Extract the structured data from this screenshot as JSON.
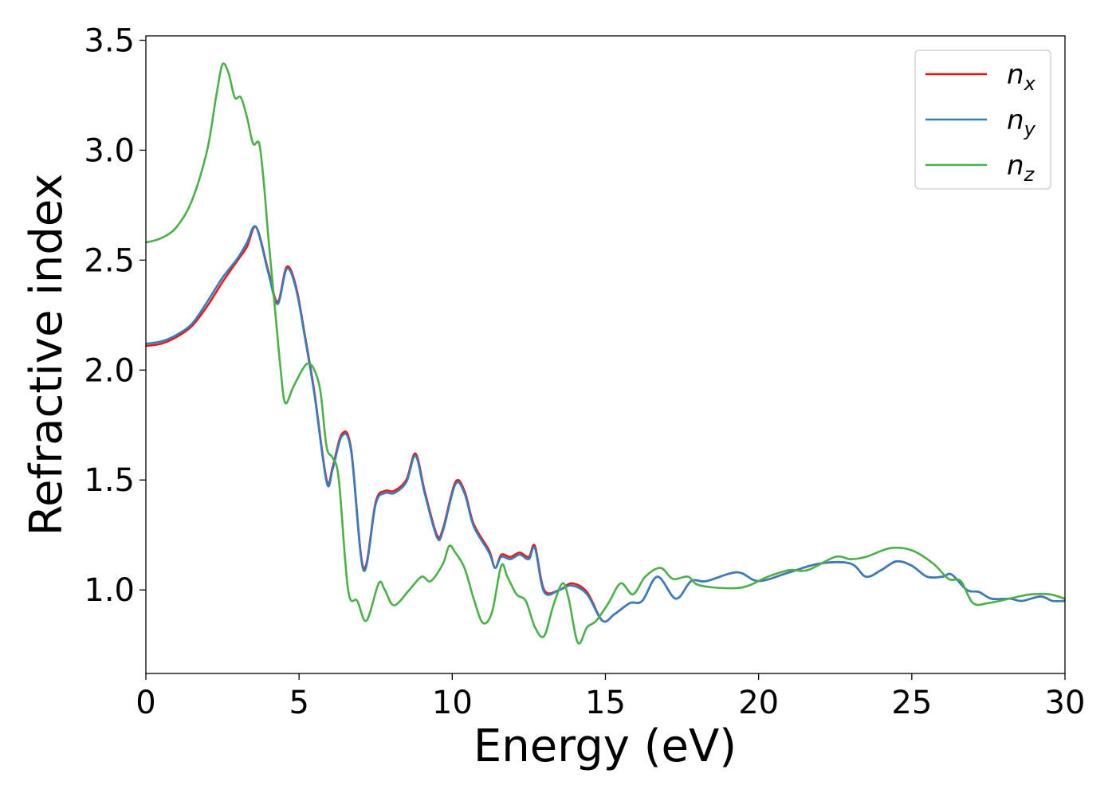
{
  "chart_data": {
    "type": "line",
    "xlabel": "Energy (eV)",
    "ylabel": "Refractive index",
    "xlim": [
      0,
      30
    ],
    "ylim": [
      0.62,
      3.52
    ],
    "x_ticks": [
      "0",
      "5",
      "10",
      "15",
      "20",
      "25",
      "30"
    ],
    "y_ticks": [
      "1.0",
      "1.5",
      "2.0",
      "2.5",
      "3.0",
      "3.5"
    ],
    "legend_position": "top-right",
    "grid": false,
    "series": [
      {
        "name": "n",
        "subscript": "x",
        "color": "#e41a1c",
        "points": [
          [
            0,
            2.11
          ],
          [
            0.5,
            2.12
          ],
          [
            1,
            2.15
          ],
          [
            1.5,
            2.2
          ],
          [
            2,
            2.29
          ],
          [
            2.5,
            2.4
          ],
          [
            3,
            2.5
          ],
          [
            3.3,
            2.56
          ],
          [
            3.6,
            2.65
          ],
          [
            4,
            2.45
          ],
          [
            4.3,
            2.31
          ],
          [
            4.6,
            2.47
          ],
          [
            4.9,
            2.38
          ],
          [
            5.2,
            2.15
          ],
          [
            5.5,
            1.9
          ],
          [
            5.9,
            1.5
          ],
          [
            6.1,
            1.56
          ],
          [
            6.4,
            1.71
          ],
          [
            6.7,
            1.64
          ],
          [
            7.1,
            1.1
          ],
          [
            7.5,
            1.4
          ],
          [
            7.8,
            1.45
          ],
          [
            8.1,
            1.45
          ],
          [
            8.5,
            1.5
          ],
          [
            8.8,
            1.62
          ],
          [
            9.1,
            1.45
          ],
          [
            9.5,
            1.25
          ],
          [
            9.7,
            1.28
          ],
          [
            10.1,
            1.49
          ],
          [
            10.4,
            1.45
          ],
          [
            10.7,
            1.3
          ],
          [
            11.2,
            1.18
          ],
          [
            11.4,
            1.1
          ],
          [
            11.6,
            1.16
          ],
          [
            11.9,
            1.15
          ],
          [
            12.2,
            1.17
          ],
          [
            12.5,
            1.15
          ],
          [
            12.7,
            1.2
          ],
          [
            13,
            1.0
          ],
          [
            13.5,
            1.0
          ],
          [
            13.9,
            1.03
          ],
          [
            14.4,
            0.99
          ],
          [
            14.9,
            0.86
          ],
          [
            15.3,
            0.89
          ],
          [
            15.8,
            0.94
          ],
          [
            16.2,
            0.95
          ],
          [
            16.7,
            1.06
          ],
          [
            17.3,
            0.96
          ],
          [
            17.8,
            1.04
          ],
          [
            18.3,
            1.04
          ],
          [
            19.3,
            1.08
          ],
          [
            20,
            1.04
          ],
          [
            21,
            1.08
          ],
          [
            22,
            1.12
          ],
          [
            23,
            1.12
          ],
          [
            23.5,
            1.06
          ],
          [
            24,
            1.09
          ],
          [
            24.5,
            1.13
          ],
          [
            25,
            1.11
          ],
          [
            25.5,
            1.06
          ],
          [
            26,
            1.06
          ],
          [
            26.3,
            1.07
          ],
          [
            26.8,
            1.0
          ],
          [
            27.2,
            0.99
          ],
          [
            27.6,
            0.96
          ],
          [
            28.2,
            0.96
          ],
          [
            28.6,
            0.95
          ],
          [
            29.2,
            0.97
          ],
          [
            29.6,
            0.95
          ],
          [
            30,
            0.95
          ]
        ]
      },
      {
        "name": "n",
        "subscript": "y",
        "color": "#377eb8",
        "points": [
          [
            0,
            2.12
          ],
          [
            0.5,
            2.13
          ],
          [
            1,
            2.16
          ],
          [
            1.5,
            2.21
          ],
          [
            2,
            2.31
          ],
          [
            2.5,
            2.42
          ],
          [
            3,
            2.51
          ],
          [
            3.3,
            2.58
          ],
          [
            3.6,
            2.65
          ],
          [
            4,
            2.44
          ],
          [
            4.3,
            2.3
          ],
          [
            4.6,
            2.46
          ],
          [
            4.9,
            2.37
          ],
          [
            5.2,
            2.14
          ],
          [
            5.5,
            1.89
          ],
          [
            5.9,
            1.49
          ],
          [
            6.1,
            1.55
          ],
          [
            6.4,
            1.7
          ],
          [
            6.7,
            1.63
          ],
          [
            7.1,
            1.09
          ],
          [
            7.5,
            1.39
          ],
          [
            7.8,
            1.44
          ],
          [
            8.1,
            1.44
          ],
          [
            8.5,
            1.49
          ],
          [
            8.8,
            1.61
          ],
          [
            9.1,
            1.44
          ],
          [
            9.5,
            1.24
          ],
          [
            9.7,
            1.27
          ],
          [
            10.1,
            1.48
          ],
          [
            10.4,
            1.44
          ],
          [
            10.7,
            1.29
          ],
          [
            11.2,
            1.17
          ],
          [
            11.4,
            1.1
          ],
          [
            11.6,
            1.15
          ],
          [
            11.9,
            1.14
          ],
          [
            12.2,
            1.16
          ],
          [
            12.5,
            1.14
          ],
          [
            12.7,
            1.19
          ],
          [
            13,
            0.99
          ],
          [
            13.5,
            1.0
          ],
          [
            13.9,
            1.02
          ],
          [
            14.4,
            0.98
          ],
          [
            14.9,
            0.86
          ],
          [
            15.3,
            0.89
          ],
          [
            15.8,
            0.94
          ],
          [
            16.2,
            0.95
          ],
          [
            16.7,
            1.06
          ],
          [
            17.3,
            0.96
          ],
          [
            17.8,
            1.04
          ],
          [
            18.3,
            1.04
          ],
          [
            19.3,
            1.08
          ],
          [
            20,
            1.04
          ],
          [
            21,
            1.08
          ],
          [
            22,
            1.12
          ],
          [
            23,
            1.12
          ],
          [
            23.5,
            1.06
          ],
          [
            24,
            1.09
          ],
          [
            24.5,
            1.13
          ],
          [
            25,
            1.11
          ],
          [
            25.5,
            1.06
          ],
          [
            26,
            1.06
          ],
          [
            26.3,
            1.07
          ],
          [
            26.8,
            1.0
          ],
          [
            27.2,
            0.99
          ],
          [
            27.6,
            0.96
          ],
          [
            28.2,
            0.96
          ],
          [
            28.6,
            0.95
          ],
          [
            29.2,
            0.97
          ],
          [
            29.6,
            0.95
          ],
          [
            30,
            0.95
          ]
        ]
      },
      {
        "name": "n",
        "subscript": "z",
        "color": "#4daf4a",
        "points": [
          [
            0,
            2.58
          ],
          [
            0.5,
            2.6
          ],
          [
            1,
            2.65
          ],
          [
            1.5,
            2.77
          ],
          [
            2,
            3.0
          ],
          [
            2.3,
            3.25
          ],
          [
            2.5,
            3.39
          ],
          [
            2.7,
            3.35
          ],
          [
            2.9,
            3.24
          ],
          [
            3.1,
            3.24
          ],
          [
            3.3,
            3.15
          ],
          [
            3.5,
            3.03
          ],
          [
            3.7,
            3.03
          ],
          [
            3.85,
            2.85
          ],
          [
            4.0,
            2.6
          ],
          [
            4.2,
            2.3
          ],
          [
            4.4,
            2.0
          ],
          [
            4.55,
            1.85
          ],
          [
            4.8,
            1.92
          ],
          [
            5.1,
            2.0
          ],
          [
            5.3,
            2.03
          ],
          [
            5.5,
            2.0
          ],
          [
            5.7,
            1.9
          ],
          [
            5.9,
            1.65
          ],
          [
            6.1,
            1.6
          ],
          [
            6.3,
            1.5
          ],
          [
            6.6,
            1.0
          ],
          [
            6.9,
            0.95
          ],
          [
            7.2,
            0.86
          ],
          [
            7.6,
            1.03
          ],
          [
            7.8,
            1.0
          ],
          [
            8.1,
            0.93
          ],
          [
            8.6,
            1.0
          ],
          [
            9.0,
            1.06
          ],
          [
            9.3,
            1.04
          ],
          [
            9.7,
            1.12
          ],
          [
            9.9,
            1.2
          ],
          [
            10.1,
            1.17
          ],
          [
            10.4,
            1.1
          ],
          [
            10.7,
            0.96
          ],
          [
            11.0,
            0.85
          ],
          [
            11.3,
            0.9
          ],
          [
            11.6,
            1.11
          ],
          [
            11.8,
            1.06
          ],
          [
            12.1,
            0.98
          ],
          [
            12.4,
            0.95
          ],
          [
            12.7,
            0.83
          ],
          [
            13.0,
            0.79
          ],
          [
            13.3,
            0.93
          ],
          [
            13.6,
            1.03
          ],
          [
            13.8,
            0.96
          ],
          [
            14.1,
            0.76
          ],
          [
            14.4,
            0.83
          ],
          [
            14.7,
            0.86
          ],
          [
            15.1,
            0.94
          ],
          [
            15.5,
            1.03
          ],
          [
            15.9,
            0.98
          ],
          [
            16.3,
            1.06
          ],
          [
            16.8,
            1.1
          ],
          [
            17.2,
            1.05
          ],
          [
            17.7,
            1.06
          ],
          [
            18.1,
            1.02
          ],
          [
            19.4,
            1.01
          ],
          [
            20.3,
            1.06
          ],
          [
            21.0,
            1.09
          ],
          [
            21.6,
            1.09
          ],
          [
            22.5,
            1.15
          ],
          [
            23.0,
            1.14
          ],
          [
            23.5,
            1.15
          ],
          [
            24.3,
            1.19
          ],
          [
            25.0,
            1.18
          ],
          [
            25.7,
            1.12
          ],
          [
            26.2,
            1.05
          ],
          [
            26.6,
            1.04
          ],
          [
            27.0,
            0.94
          ],
          [
            27.5,
            0.94
          ],
          [
            28.5,
            0.97
          ],
          [
            28.9,
            0.98
          ],
          [
            29.5,
            0.98
          ],
          [
            30,
            0.96
          ]
        ]
      }
    ]
  }
}
